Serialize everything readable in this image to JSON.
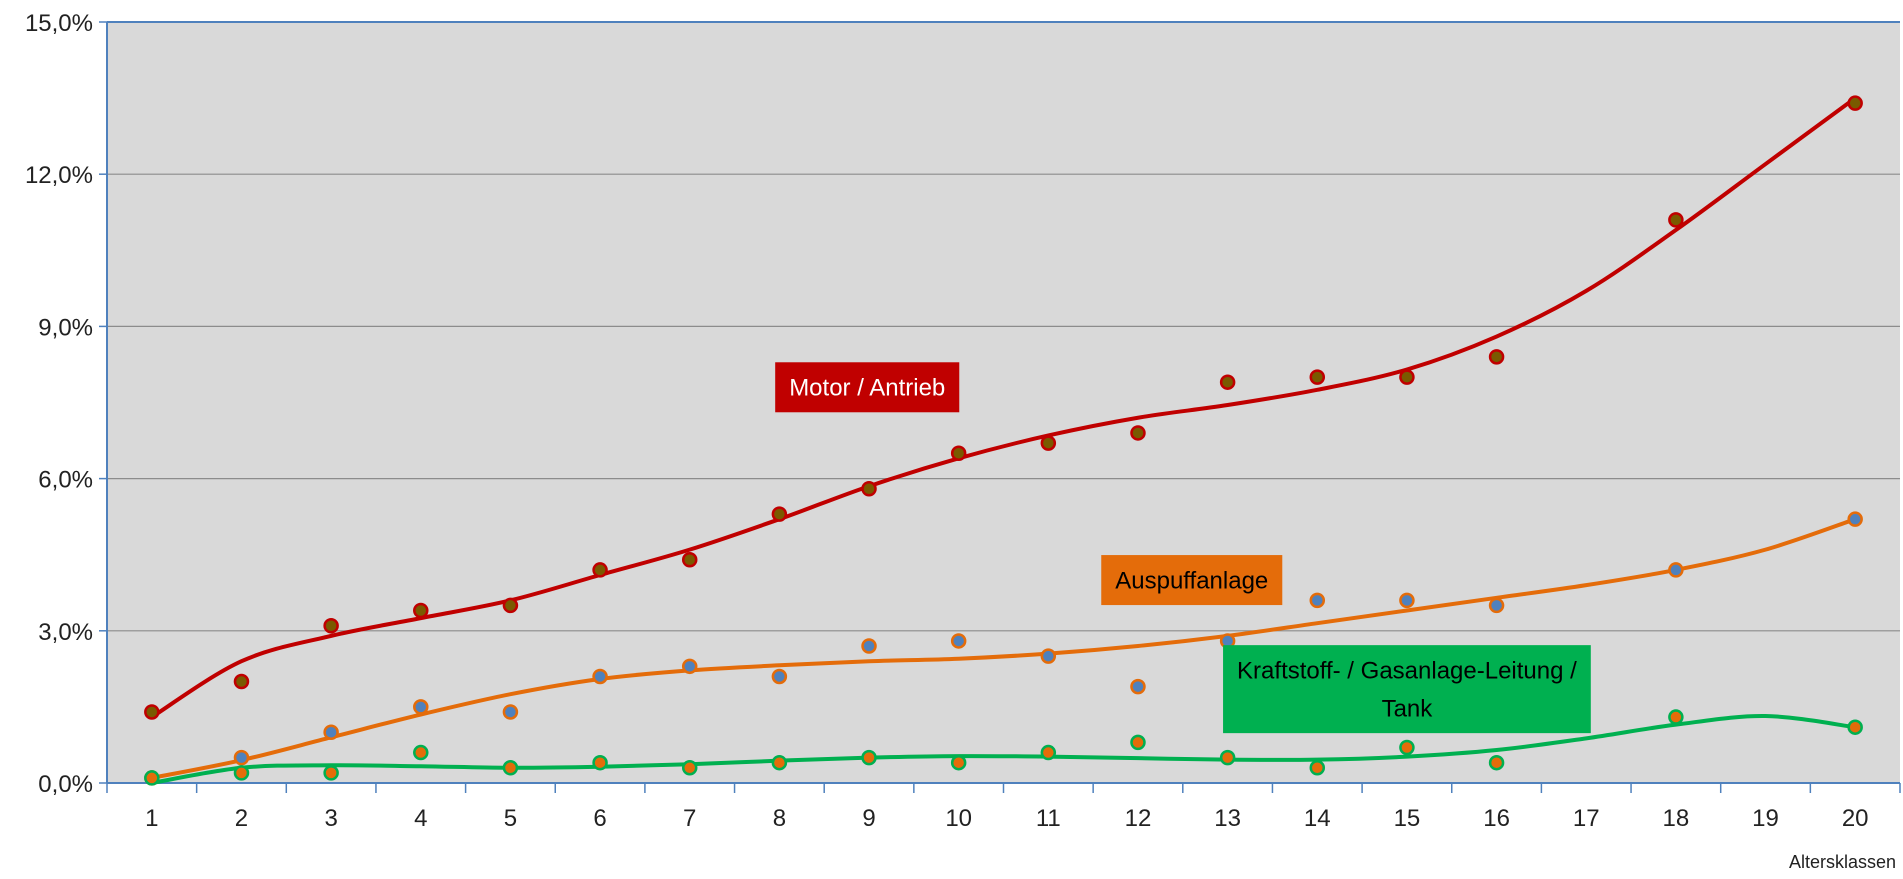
{
  "chart_data": {
    "type": "scatter",
    "xlabel": "Altersklassen",
    "ylabel": "",
    "ylim": [
      0,
      15
    ],
    "yticks": [
      "0,0%",
      "3,0%",
      "6,0%",
      "9,0%",
      "12,0%",
      "15,0%"
    ],
    "categories": [
      "1",
      "2",
      "3",
      "4",
      "5",
      "6",
      "7",
      "8",
      "9",
      "10",
      "11",
      "12",
      "13",
      "14",
      "15",
      "16",
      "17",
      "18",
      "19",
      "20"
    ],
    "grid": true,
    "plot_background": "#d9d9d9",
    "series": [
      {
        "name": "Motor / Antrieb",
        "color": "#c00000",
        "marker_color": "#7a5a00",
        "points": [
          {
            "x": 1,
            "y": 1.4
          },
          {
            "x": 2,
            "y": 2.0
          },
          {
            "x": 3,
            "y": 3.1
          },
          {
            "x": 4,
            "y": 3.4
          },
          {
            "x": 5,
            "y": 3.5
          },
          {
            "x": 6,
            "y": 4.2
          },
          {
            "x": 7,
            "y": 4.4
          },
          {
            "x": 8,
            "y": 5.3
          },
          {
            "x": 9,
            "y": 5.8
          },
          {
            "x": 10,
            "y": 6.5
          },
          {
            "x": 11,
            "y": 6.7
          },
          {
            "x": 12,
            "y": 6.9
          },
          {
            "x": 13,
            "y": 7.9
          },
          {
            "x": 14,
            "y": 8.0
          },
          {
            "x": 15,
            "y": 8.0
          },
          {
            "x": 16,
            "y": 8.4
          },
          {
            "x": 18,
            "y": 11.1
          },
          {
            "x": 20,
            "y": 13.4
          }
        ],
        "trend": [
          {
            "x": 1,
            "y": 1.3
          },
          {
            "x": 2,
            "y": 2.4
          },
          {
            "x": 3,
            "y": 2.9
          },
          {
            "x": 4,
            "y": 3.25
          },
          {
            "x": 5,
            "y": 3.6
          },
          {
            "x": 6,
            "y": 4.1
          },
          {
            "x": 7,
            "y": 4.6
          },
          {
            "x": 8,
            "y": 5.2
          },
          {
            "x": 9,
            "y": 5.85
          },
          {
            "x": 10,
            "y": 6.4
          },
          {
            "x": 11,
            "y": 6.85
          },
          {
            "x": 12,
            "y": 7.2
          },
          {
            "x": 13,
            "y": 7.45
          },
          {
            "x": 14,
            "y": 7.75
          },
          {
            "x": 15,
            "y": 8.15
          },
          {
            "x": 16,
            "y": 8.8
          },
          {
            "x": 17,
            "y": 9.7
          },
          {
            "x": 18,
            "y": 10.9
          },
          {
            "x": 19,
            "y": 12.2
          },
          {
            "x": 20,
            "y": 13.5
          }
        ]
      },
      {
        "name": "Auspuffanlage",
        "color": "#e46c0a",
        "marker_color": "#4f81bd",
        "points": [
          {
            "x": 1,
            "y": 0.1
          },
          {
            "x": 2,
            "y": 0.5
          },
          {
            "x": 3,
            "y": 1.0
          },
          {
            "x": 4,
            "y": 1.5
          },
          {
            "x": 5,
            "y": 1.4
          },
          {
            "x": 6,
            "y": 2.1
          },
          {
            "x": 7,
            "y": 2.3
          },
          {
            "x": 8,
            "y": 2.1
          },
          {
            "x": 9,
            "y": 2.7
          },
          {
            "x": 10,
            "y": 2.8
          },
          {
            "x": 11,
            "y": 2.5
          },
          {
            "x": 12,
            "y": 1.9
          },
          {
            "x": 13,
            "y": 2.8
          },
          {
            "x": 14,
            "y": 3.6
          },
          {
            "x": 15,
            "y": 3.6
          },
          {
            "x": 16,
            "y": 3.5
          },
          {
            "x": 18,
            "y": 4.2
          },
          {
            "x": 20,
            "y": 5.2
          }
        ],
        "trend": [
          {
            "x": 1,
            "y": 0.1
          },
          {
            "x": 2,
            "y": 0.45
          },
          {
            "x": 3,
            "y": 0.9
          },
          {
            "x": 4,
            "y": 1.35
          },
          {
            "x": 5,
            "y": 1.75
          },
          {
            "x": 6,
            "y": 2.05
          },
          {
            "x": 7,
            "y": 2.22
          },
          {
            "x": 8,
            "y": 2.32
          },
          {
            "x": 9,
            "y": 2.4
          },
          {
            "x": 10,
            "y": 2.45
          },
          {
            "x": 11,
            "y": 2.55
          },
          {
            "x": 12,
            "y": 2.7
          },
          {
            "x": 13,
            "y": 2.9
          },
          {
            "x": 14,
            "y": 3.15
          },
          {
            "x": 15,
            "y": 3.4
          },
          {
            "x": 16,
            "y": 3.65
          },
          {
            "x": 17,
            "y": 3.9
          },
          {
            "x": 18,
            "y": 4.2
          },
          {
            "x": 19,
            "y": 4.6
          },
          {
            "x": 20,
            "y": 5.2
          }
        ]
      },
      {
        "name": "Kraftstoff- / Gasanlage-Leitung / Tank",
        "color": "#00b050",
        "marker_color": "#e46c0a",
        "points": [
          {
            "x": 1,
            "y": 0.1
          },
          {
            "x": 2,
            "y": 0.2
          },
          {
            "x": 3,
            "y": 0.2
          },
          {
            "x": 4,
            "y": 0.6
          },
          {
            "x": 5,
            "y": 0.3
          },
          {
            "x": 6,
            "y": 0.4
          },
          {
            "x": 7,
            "y": 0.3
          },
          {
            "x": 8,
            "y": 0.4
          },
          {
            "x": 9,
            "y": 0.5
          },
          {
            "x": 10,
            "y": 0.4
          },
          {
            "x": 11,
            "y": 0.6
          },
          {
            "x": 12,
            "y": 0.8
          },
          {
            "x": 13,
            "y": 0.5
          },
          {
            "x": 14,
            "y": 0.3
          },
          {
            "x": 15,
            "y": 0.7
          },
          {
            "x": 16,
            "y": 0.4
          },
          {
            "x": 18,
            "y": 1.3
          },
          {
            "x": 20,
            "y": 1.1
          }
        ],
        "trend": [
          {
            "x": 1,
            "y": 0.0
          },
          {
            "x": 2,
            "y": 0.3
          },
          {
            "x": 3,
            "y": 0.35
          },
          {
            "x": 4,
            "y": 0.33
          },
          {
            "x": 5,
            "y": 0.3
          },
          {
            "x": 6,
            "y": 0.32
          },
          {
            "x": 7,
            "y": 0.37
          },
          {
            "x": 8,
            "y": 0.44
          },
          {
            "x": 9,
            "y": 0.5
          },
          {
            "x": 10,
            "y": 0.53
          },
          {
            "x": 11,
            "y": 0.52
          },
          {
            "x": 12,
            "y": 0.49
          },
          {
            "x": 13,
            "y": 0.46
          },
          {
            "x": 14,
            "y": 0.46
          },
          {
            "x": 15,
            "y": 0.52
          },
          {
            "x": 16,
            "y": 0.65
          },
          {
            "x": 17,
            "y": 0.88
          },
          {
            "x": 18,
            "y": 1.15
          },
          {
            "x": 19,
            "y": 1.32
          },
          {
            "x": 20,
            "y": 1.1
          }
        ]
      }
    ],
    "annotations": [
      {
        "series": 0,
        "lines": [
          "Motor / Antrieb"
        ],
        "bg": "#c00000",
        "text_color": "#ffffff",
        "x": 8.98,
        "y": 7.8
      },
      {
        "series": 1,
        "lines": [
          "Auspuffanlage"
        ],
        "bg": "#e46c0a",
        "text_color": "#000000",
        "x": 12.6,
        "y": 4.0
      },
      {
        "series": 2,
        "lines": [
          "Kraftstoff- / Gasanlage-Leitung /",
          "Tank"
        ],
        "bg": "#00b050",
        "text_color": "#000000",
        "x": 15.0,
        "y": 1.85
      }
    ]
  }
}
